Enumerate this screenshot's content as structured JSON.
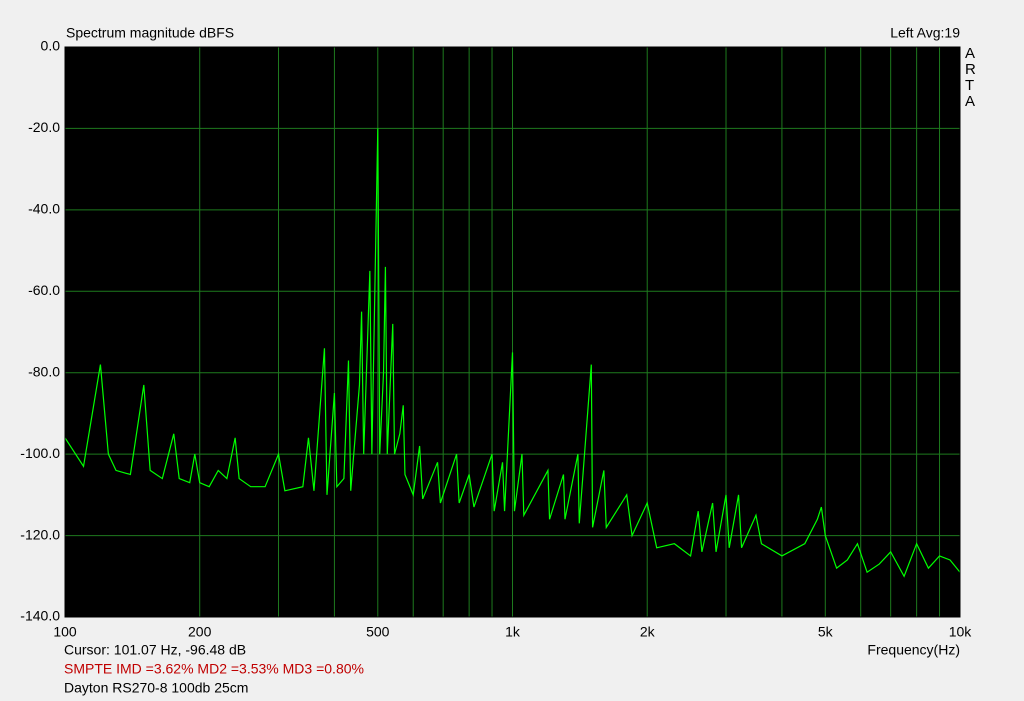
{
  "chart_data": {
    "type": "line",
    "title": "Spectrum magnitude dBFS",
    "channel_info": "Left  Avg:19",
    "watermark": "ARTA",
    "x_label": "Frequency(Hz)",
    "cursor_text": "Cursor: 101.07 Hz, -96.48 dB",
    "distortion_text": "SMPTE IMD =3.62%  MD2 =3.53%  MD3 =0.80%",
    "description": "Dayton RS270-8 100db 25cm",
    "x_log": true,
    "grid": true,
    "color": "#00ff00",
    "xlim": [
      100,
      10000
    ],
    "ylim": [
      -140,
      0
    ],
    "xticks": [
      100,
      200,
      500,
      {
        "value": 1000,
        "label": "1k"
      },
      {
        "value": 2000,
        "label": "2k"
      },
      {
        "value": 5000,
        "label": "5k"
      },
      {
        "value": 10000,
        "label": "10k"
      }
    ],
    "x_minor_grid": [
      300,
      400,
      600,
      700,
      800,
      900,
      3000,
      4000,
      6000,
      7000,
      8000,
      9000
    ],
    "yticks": [
      {
        "value": 0,
        "label": "0.0"
      },
      {
        "value": -20,
        "label": "-20.0"
      },
      {
        "value": -40,
        "label": "-40.0"
      },
      {
        "value": -60,
        "label": "-60.0"
      },
      {
        "value": -80,
        "label": "-80.0"
      },
      {
        "value": -100,
        "label": "-100.0"
      },
      {
        "value": -120,
        "label": "-120.0"
      },
      {
        "value": -140,
        "label": "-140.0"
      }
    ],
    "x": [
      100,
      110,
      120,
      125,
      130,
      140,
      150,
      155,
      165,
      175,
      180,
      190,
      195,
      200,
      210,
      220,
      230,
      240,
      245,
      260,
      280,
      300,
      310,
      340,
      350,
      360,
      380,
      385,
      400,
      405,
      420,
      430,
      435,
      455,
      460,
      465,
      480,
      485,
      500,
      505,
      515,
      520,
      525,
      540,
      545,
      560,
      570,
      575,
      600,
      620,
      630,
      680,
      690,
      750,
      760,
      800,
      820,
      900,
      910,
      950,
      960,
      1000,
      1010,
      1050,
      1060,
      1200,
      1210,
      1300,
      1310,
      1400,
      1410,
      1500,
      1510,
      1600,
      1620,
      1800,
      1850,
      2000,
      2100,
      2300,
      2500,
      2600,
      2650,
      2800,
      2850,
      3000,
      3050,
      3200,
      3250,
      3500,
      3600,
      4000,
      4500,
      4800,
      4900,
      5000,
      5300,
      5600,
      5900,
      6200,
      6600,
      7000,
      7500,
      8000,
      8500,
      9000,
      9500,
      10000
    ],
    "values": [
      -96,
      -103,
      -78,
      -100,
      -104,
      -105,
      -83,
      -104,
      -106,
      -95,
      -106,
      -107,
      -100,
      -107,
      -108,
      -104,
      -106,
      -96,
      -106,
      -108,
      -108,
      -100,
      -109,
      -108,
      -96,
      -109,
      -74,
      -110,
      -85,
      -108,
      -106,
      -77,
      -109,
      -83,
      -65,
      -100,
      -55,
      -100,
      -20,
      -100,
      -80,
      -54,
      -100,
      -68,
      -100,
      -95,
      -88,
      -105,
      -110,
      -98,
      -111,
      -102,
      -112,
      -100,
      -112,
      -105,
      -113,
      -100,
      -114,
      -102,
      -114,
      -75,
      -114,
      -100,
      -115,
      -104,
      -116,
      -105,
      -116,
      -100,
      -117,
      -78,
      -118,
      -104,
      -118,
      -110,
      -120,
      -112,
      -123,
      -122,
      -125,
      -114,
      -124,
      -112,
      -124,
      -110,
      -123,
      -110,
      -123,
      -115,
      -122,
      -125,
      -122,
      -116,
      -113,
      -120,
      -128,
      -126,
      -122,
      -129,
      -127,
      -124,
      -130,
      -122,
      -128,
      -125,
      -126,
      -129
    ]
  }
}
